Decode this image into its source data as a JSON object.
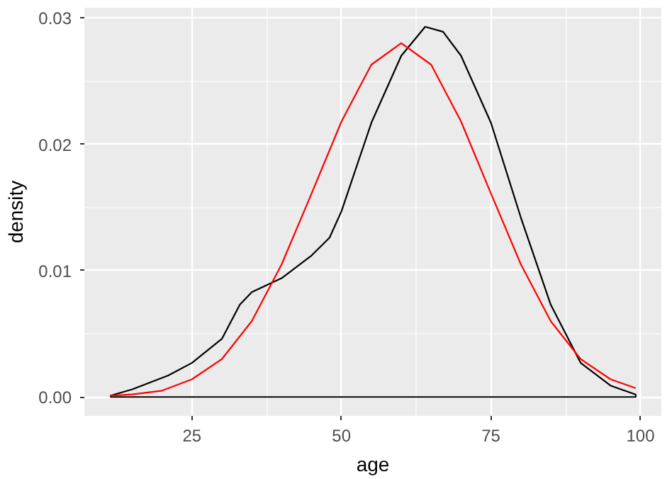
{
  "chart_data": {
    "type": "line",
    "xlabel": "age",
    "ylabel": "density",
    "xlim": [
      7,
      103.5
    ],
    "ylim": [
      -0.0015,
      0.0308
    ],
    "xticks": [
      25,
      50,
      75,
      100
    ],
    "yticks": [
      {
        "value": 0,
        "label": "0.00"
      },
      {
        "value": 0.01,
        "label": "0.01"
      },
      {
        "value": 0.02,
        "label": "0.02"
      },
      {
        "value": 0.03,
        "label": "0.03"
      }
    ],
    "grid": true,
    "line_style": "solid",
    "series": [
      {
        "color": "#000000",
        "x": [
          11.3,
          15,
          21,
          25,
          30,
          33,
          35,
          40,
          45,
          48,
          50,
          55,
          60,
          64,
          67,
          70,
          75,
          80,
          85,
          90,
          95,
          99.2,
          99.2,
          11.3
        ],
        "values": [
          0.0001,
          0.0006,
          0.0017,
          0.0027,
          0.0046,
          0.0073,
          0.0083,
          0.0094,
          0.0112,
          0.0126,
          0.0147,
          0.0217,
          0.027,
          0.0293,
          0.0289,
          0.027,
          0.0217,
          0.0142,
          0.0073,
          0.0027,
          0.0009,
          0.0002,
          0,
          0
        ]
      },
      {
        "color": "#ff0000",
        "x": [
          11.3,
          15,
          20,
          25,
          30,
          35,
          40,
          45,
          50,
          55,
          60,
          65,
          70,
          75,
          80,
          85,
          90,
          95,
          99.2
        ],
        "values": [
          0.0001,
          0.0002,
          0.0005,
          0.0014,
          0.003,
          0.006,
          0.0105,
          0.0161,
          0.0218,
          0.0263,
          0.028,
          0.0263,
          0.0218,
          0.0161,
          0.0105,
          0.006,
          0.003,
          0.0014,
          0.0007
        ]
      }
    ]
  }
}
